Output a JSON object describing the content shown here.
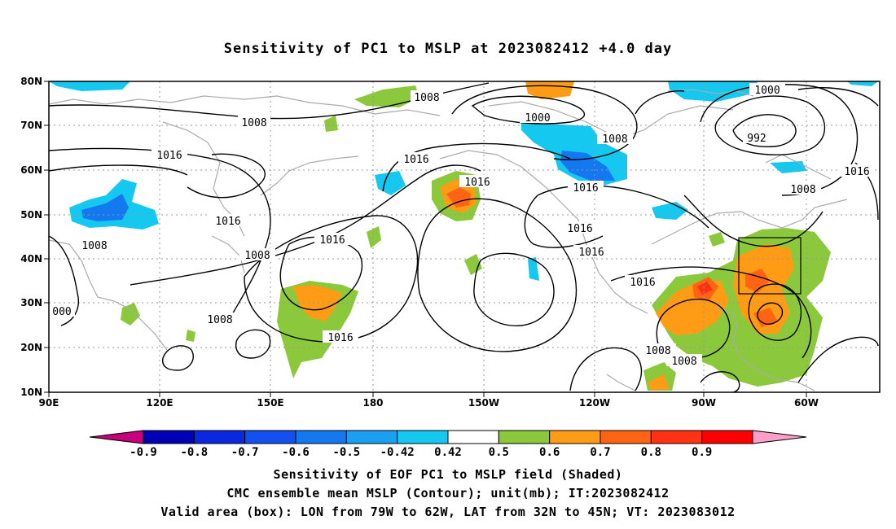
{
  "title": "Sensitivity of PC1 to MSLP at 2023082412 +4.0 day",
  "lat_labels": [
    "80N",
    "70N",
    "60N",
    "50N",
    "40N",
    "30N",
    "20N",
    "10N"
  ],
  "lon_labels": [
    "90E",
    "120E",
    "150E",
    "180",
    "150W",
    "120W",
    "90W",
    "60W"
  ],
  "contour_labels": [
    {
      "text": "1008"
    },
    {
      "text": "1008"
    },
    {
      "text": "1000"
    },
    {
      "text": "1008"
    },
    {
      "text": "1000"
    },
    {
      "text": "992"
    },
    {
      "text": "1016"
    },
    {
      "text": "1016"
    },
    {
      "text": "1016"
    },
    {
      "text": "1016"
    },
    {
      "text": "1016"
    },
    {
      "text": "1008"
    },
    {
      "text": "1016"
    },
    {
      "text": "1008"
    },
    {
      "text": "1016"
    },
    {
      "text": "1016"
    },
    {
      "text": "1016"
    },
    {
      "text": "1008"
    },
    {
      "text": "1008"
    },
    {
      "text": "1016"
    },
    {
      "text": "1008"
    },
    {
      "text": "1008"
    },
    {
      "text": "000"
    }
  ],
  "colorbar": {
    "labels": [
      "-0.9",
      "-0.8",
      "-0.7",
      "-0.6",
      "-0.5",
      "-0.42",
      "0.42",
      "0.5",
      "0.6",
      "0.7",
      "0.8",
      "0.9"
    ],
    "colors": [
      "#c8007e",
      "#0000b4",
      "#0a28e0",
      "#1450f0",
      "#1478f0",
      "#19a0f0",
      "#14c8f0",
      "#ffffff",
      "#8cc83c",
      "#ff9b14",
      "#ff6414",
      "#ff3214",
      "#ff0000",
      "#ffa0c8"
    ]
  },
  "caption": {
    "line1": "Sensitivity of EOF PC1 to MSLP field (Shaded)",
    "line2": "CMC ensemble mean MSLP (Contour); unit(mb); IT:2023082412",
    "line3": "Valid area (box): LON from 79W to 62W, LAT from 32N to 45N; VT: 2023083012"
  }
}
